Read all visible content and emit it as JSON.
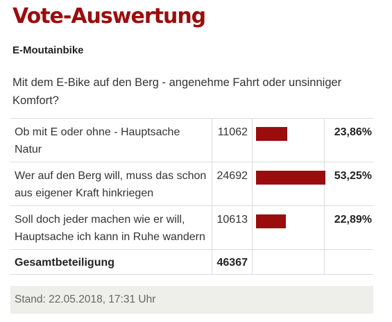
{
  "title": "Vote-Auswertung",
  "subtitle": "E-Moutainbike",
  "question": "Mit dem E-Bike auf den Berg - angenehme Fahrt oder unsinniger Komfort?",
  "accent_color": "#9b0d0d",
  "options": [
    {
      "label": "Ob mit E oder ohne - Hauptsache Natur",
      "count": "11062",
      "percent": "23,86%",
      "share": 0.2386
    },
    {
      "label": "Wer auf den Berg will, muss das schon aus eigener Kraft hinkriegen",
      "count": "24692",
      "percent": "53,25%",
      "share": 0.5325
    },
    {
      "label": "Soll doch jeder machen wie er will, Hauptsache ich kann in Ruhe wandern",
      "count": "10613",
      "percent": "22,89%",
      "share": 0.2289
    }
  ],
  "total": {
    "label": "Gesamtbeteiligung",
    "count": "46367"
  },
  "footer": "Stand: 22.05.2018, 17:31 Uhr"
}
